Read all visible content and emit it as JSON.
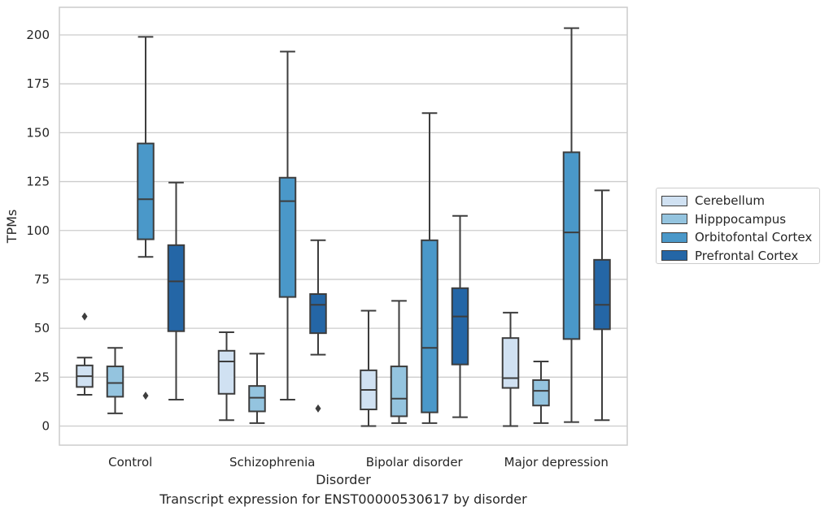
{
  "chart_data": {
    "type": "box",
    "title": "",
    "caption": "Transcript expression for ENST00000530617 by disorder",
    "xlabel": "Disorder",
    "ylabel": "TPMs",
    "ylim": [
      -10,
      215
    ],
    "yticks": [
      0,
      25,
      50,
      75,
      100,
      125,
      150,
      175,
      200
    ],
    "grid": "horizontal",
    "legend_position": "right",
    "categories": [
      "Control",
      "Schizophrenia",
      "Bipolar disorder",
      "Major depression"
    ],
    "series": [
      {
        "name": "Cerebellum",
        "color": "#d0e1f2",
        "boxes": [
          {
            "whislo": 16,
            "q1": 20,
            "med": 25.5,
            "q3": 31,
            "whishi": 35,
            "fliers": [
              56
            ]
          },
          {
            "whislo": 3,
            "q1": 16.5,
            "med": 33,
            "q3": 38.5,
            "whishi": 48,
            "fliers": []
          },
          {
            "whislo": 0,
            "q1": 8.5,
            "med": 18.5,
            "q3": 28.5,
            "whishi": 59,
            "fliers": []
          },
          {
            "whislo": 0,
            "q1": 19.5,
            "med": 24.5,
            "q3": 45,
            "whishi": 58,
            "fliers": []
          }
        ]
      },
      {
        "name": "Hipppocampus",
        "color": "#94c4df",
        "boxes": [
          {
            "whislo": 6.5,
            "q1": 15,
            "med": 22,
            "q3": 30.5,
            "whishi": 40,
            "fliers": []
          },
          {
            "whislo": 1.5,
            "q1": 7.5,
            "med": 14.5,
            "q3": 20.5,
            "whishi": 37,
            "fliers": []
          },
          {
            "whislo": 1.5,
            "q1": 5,
            "med": 14,
            "q3": 30.5,
            "whishi": 64,
            "fliers": []
          },
          {
            "whislo": 1.5,
            "q1": 10.5,
            "med": 18,
            "q3": 23.5,
            "whishi": 33,
            "fliers": []
          }
        ]
      },
      {
        "name": "Orbitofontal Cortex",
        "color": "#4a98c9",
        "boxes": [
          {
            "whislo": 86.5,
            "q1": 95.5,
            "med": 116,
            "q3": 144.5,
            "whishi": 199,
            "fliers": [
              15.5
            ]
          },
          {
            "whislo": 13.5,
            "q1": 66,
            "med": 115,
            "q3": 127,
            "whishi": 191.5,
            "fliers": []
          },
          {
            "whislo": 1.5,
            "q1": 7,
            "med": 40,
            "q3": 95,
            "whishi": 160,
            "fliers": []
          },
          {
            "whislo": 2,
            "q1": 44.5,
            "med": 99,
            "q3": 140,
            "whishi": 203.5,
            "fliers": []
          }
        ]
      },
      {
        "name": "Prefrontal Cortex",
        "color": "#2466a6",
        "boxes": [
          {
            "whislo": 13.5,
            "q1": 48.5,
            "med": 74,
            "q3": 92.5,
            "whishi": 124.5,
            "fliers": []
          },
          {
            "whislo": 36.5,
            "q1": 47.5,
            "med": 62,
            "q3": 67.5,
            "whishi": 95,
            "fliers": [
              9
            ]
          },
          {
            "whislo": 4.5,
            "q1": 31.5,
            "med": 56,
            "q3": 70.5,
            "whishi": 107.5,
            "fliers": []
          },
          {
            "whislo": 3,
            "q1": 49.5,
            "med": 62,
            "q3": 85,
            "whishi": 120.5,
            "fliers": []
          }
        ]
      }
    ]
  }
}
